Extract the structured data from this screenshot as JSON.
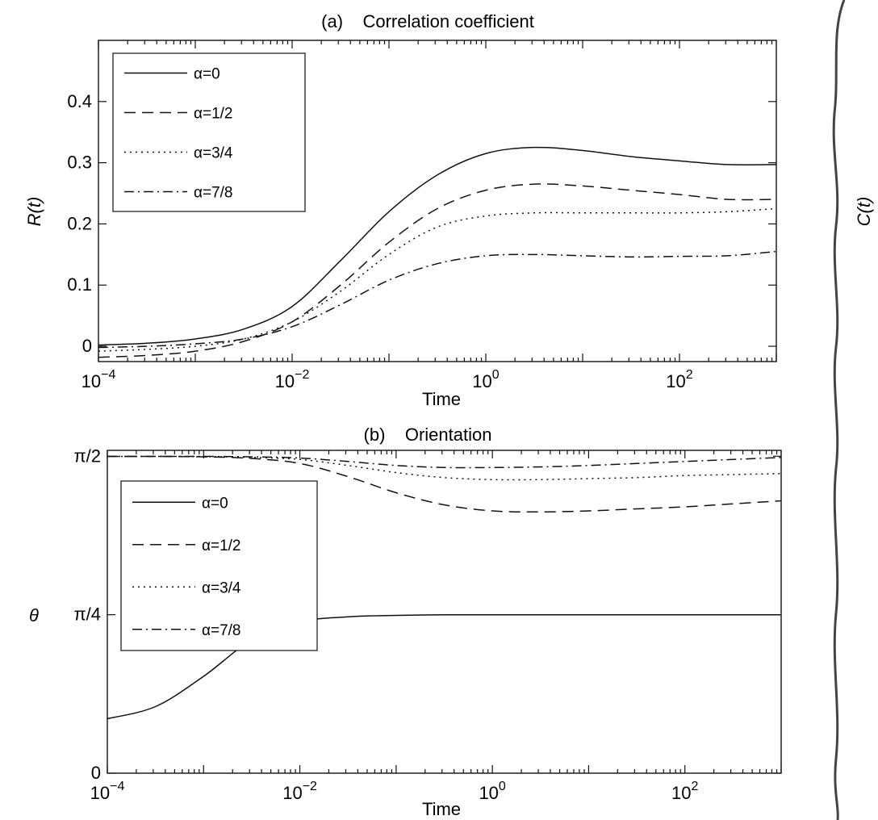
{
  "chart_data": [
    {
      "type": "line",
      "title": "(a)    Correlation coefficient",
      "xlabel": "Time",
      "ylabel": "R(t)",
      "xscale": "log",
      "xlim": [
        0.0001,
        1000
      ],
      "ylim": [
        -0.025,
        0.5
      ],
      "xticks": [
        {
          "value": 0.0001,
          "base": "10",
          "exp": "−4"
        },
        {
          "value": 0.01,
          "base": "10",
          "exp": "−2"
        },
        {
          "value": 1,
          "base": "10",
          "exp": "0"
        },
        {
          "value": 100,
          "base": "10",
          "exp": "2"
        }
      ],
      "yticks": [
        {
          "value": 0,
          "label": "0"
        },
        {
          "value": 0.1,
          "label": "0.1"
        },
        {
          "value": 0.2,
          "label": "0.2"
        },
        {
          "value": 0.3,
          "label": "0.3"
        },
        {
          "value": 0.4,
          "label": "0.4"
        }
      ],
      "legend_position": "top-left",
      "x": [
        0.0001,
        0.000316,
        0.001,
        0.00316,
        0.01,
        0.0316,
        0.1,
        0.316,
        1,
        3.16,
        10,
        31.6,
        100,
        316,
        1000
      ],
      "series": [
        {
          "name": "α=0",
          "dash": "",
          "values": [
            0.002,
            0.005,
            0.012,
            0.028,
            0.065,
            0.14,
            0.22,
            0.28,
            0.315,
            0.325,
            0.32,
            0.31,
            0.303,
            0.297,
            0.297
          ]
        },
        {
          "name": "α=1/2",
          "dash": "14,8",
          "values": [
            -0.018,
            -0.015,
            -0.008,
            0.008,
            0.04,
            0.1,
            0.17,
            0.225,
            0.255,
            0.265,
            0.262,
            0.255,
            0.248,
            0.24,
            0.24
          ]
        },
        {
          "name": "α=3/4",
          "dash": "2,5",
          "values": [
            -0.008,
            -0.005,
            0.0,
            0.012,
            0.04,
            0.09,
            0.15,
            0.195,
            0.213,
            0.218,
            0.218,
            0.218,
            0.218,
            0.22,
            0.225
          ]
        },
        {
          "name": "α=7/8",
          "dash": "12,5,2,5",
          "values": [
            -0.002,
            0.0,
            0.004,
            0.012,
            0.032,
            0.068,
            0.108,
            0.135,
            0.148,
            0.15,
            0.148,
            0.146,
            0.147,
            0.148,
            0.155
          ]
        }
      ]
    },
    {
      "type": "line",
      "title": "(b)    Orientation",
      "xlabel": "Time",
      "ylabel": "θ",
      "xscale": "log",
      "xlim": [
        0.0001,
        1000
      ],
      "ylim": [
        0,
        1.6
      ],
      "xticks": [
        {
          "value": 0.0001,
          "base": "10",
          "exp": "−4"
        },
        {
          "value": 0.01,
          "base": "10",
          "exp": "−2"
        },
        {
          "value": 1,
          "base": "10",
          "exp": "0"
        },
        {
          "value": 100,
          "base": "10",
          "exp": "2"
        }
      ],
      "yticks": [
        {
          "value": 0,
          "label": "0"
        },
        {
          "value": 0.7854,
          "label": "π/4"
        },
        {
          "value": 1.5708,
          "label": "π/2"
        }
      ],
      "legend_position": "top-left",
      "x": [
        0.0001,
        0.000316,
        0.001,
        0.00316,
        0.01,
        0.0316,
        0.1,
        0.316,
        1,
        3.16,
        10,
        31.6,
        100,
        316,
        1000
      ],
      "series": [
        {
          "name": "α=0",
          "dash": "",
          "values": [
            0.27,
            0.33,
            0.48,
            0.66,
            0.75,
            0.775,
            0.782,
            0.785,
            0.785,
            0.785,
            0.785,
            0.785,
            0.785,
            0.785,
            0.785
          ]
        },
        {
          "name": "α=1/2",
          "dash": "14,8",
          "values": [
            1.57,
            1.57,
            1.568,
            1.56,
            1.535,
            1.47,
            1.39,
            1.33,
            1.3,
            1.295,
            1.3,
            1.31,
            1.32,
            1.335,
            1.35
          ]
        },
        {
          "name": "α=3/4",
          "dash": "2,5",
          "values": [
            1.57,
            1.57,
            1.569,
            1.565,
            1.555,
            1.525,
            1.49,
            1.465,
            1.455,
            1.455,
            1.46,
            1.465,
            1.475,
            1.48,
            1.485
          ]
        },
        {
          "name": "α=7/8",
          "dash": "12,5,2,5",
          "values": [
            1.57,
            1.57,
            1.57,
            1.568,
            1.562,
            1.545,
            1.525,
            1.515,
            1.515,
            1.518,
            1.525,
            1.535,
            1.545,
            1.555,
            1.565
          ]
        }
      ]
    }
  ],
  "panels": [
    {
      "title": "(a)    Correlation coefficient",
      "xlabel": "Time",
      "ylabel": "R(t)"
    },
    {
      "title": "(b)    Orientation",
      "xlabel": "Time",
      "ylabel": "θ"
    }
  ],
  "neighbor": {
    "ylabel": "C(t)"
  }
}
